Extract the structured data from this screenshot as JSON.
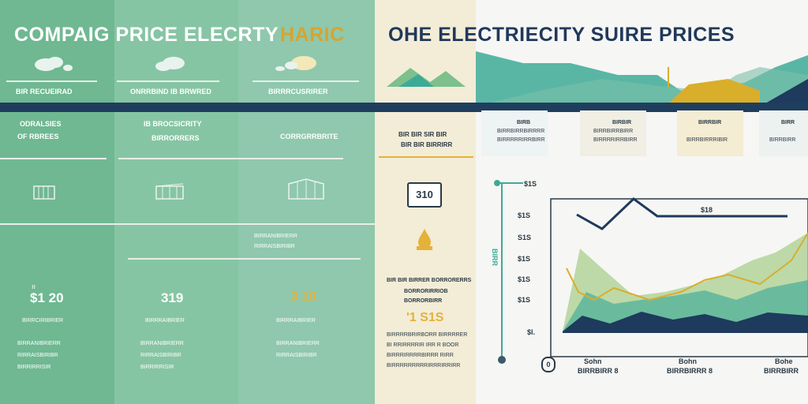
{
  "titles": {
    "left": "COMPAIG PRICE ELECRTY",
    "middle": "HARIC",
    "right": "OHE ELECTRIECITY SUIRE PRICES"
  },
  "columns": [
    {
      "header": "BIR RECUEIRAD",
      "sub1": "ODRALSIES",
      "sub2": "OF RBREES",
      "price": "$1 20",
      "desc": "BIRRCIRIBRIER",
      "lines": [
        "BIRRANIBRIERR",
        "RIRRAISBIRIBR",
        "BIRRIRRISIR"
      ]
    },
    {
      "header": "ONRRBIND IB BRWRED",
      "sub1": "IB BROCSICRITY",
      "sub2": "BIRRORRERS",
      "price": "319",
      "desc": "BIRRRAIBRIER",
      "lines": [
        "BIRRANIBRIERR",
        "RIRRAISBIRIBR",
        "BIRRIRRISIR"
      ]
    },
    {
      "header": "BIRRRCUSRIRER",
      "sub1": "",
      "sub2": "CORRGRRBRITE",
      "price": "3 10",
      "desc": "BIRRRAIBRIER",
      "lines": [
        "BIRRANIBRIERR",
        "RIRRAISBIRIBR",
        "BIRRIRRISIR"
      ]
    }
  ],
  "center": {
    "heading": [
      "BIR BIR SIR BIR",
      "BIR BIR BIRRIRR"
    ],
    "box_value": "310",
    "desc": [
      "BIR BIR BIRRER BORRORERRS",
      "BORRORIRRIOB",
      "BORRORBIRR"
    ],
    "price": "'1 S1S",
    "lines": [
      "BIRRRRBRIRBORR BIRRRRER",
      "BI RRIRRRRIR IRR R BOOR",
      "BIRRRIRRRRBIRRR RIRR",
      "BIRRRRRRRRRIRRRIRRIRR"
    ]
  },
  "panels": [
    {
      "label": "BIRB",
      "lines": [
        "BIRRBIRRBIRRRR",
        "BIRRRRRIRRBIRR"
      ]
    },
    {
      "label": "BIRBIR",
      "lines": [
        "BIRRBIRRBIRR",
        "BIRRRRIRRBIRR"
      ]
    },
    {
      "label": "BIRRBIR",
      "lines": [
        "BIRRBIRRRIBIR"
      ]
    },
    {
      "label": "BIRR",
      "lines": [
        "BIRRBIRR"
      ]
    }
  ],
  "chart_data": {
    "type": "area",
    "yticks": [
      "$1S",
      "S1S",
      "$1S",
      "$1S",
      "$1S"
    ],
    "axis_top": "$1S",
    "y_axis_label": "BIRR",
    "annotation": "$18",
    "xticks": [
      {
        "top": "Sohn",
        "bottom": "BIRRBIRR 8"
      },
      {
        "top": "Bohn",
        "bottom": "BIRRBIRRR 8"
      },
      {
        "top": "Bohe",
        "bottom": "BIRRBIRR"
      }
    ],
    "zero": "0",
    "colors": {
      "teal": "#3daa96",
      "green": "#a9cf8f",
      "navy": "#1e3a5c",
      "gold": "#d9ae2b"
    }
  }
}
